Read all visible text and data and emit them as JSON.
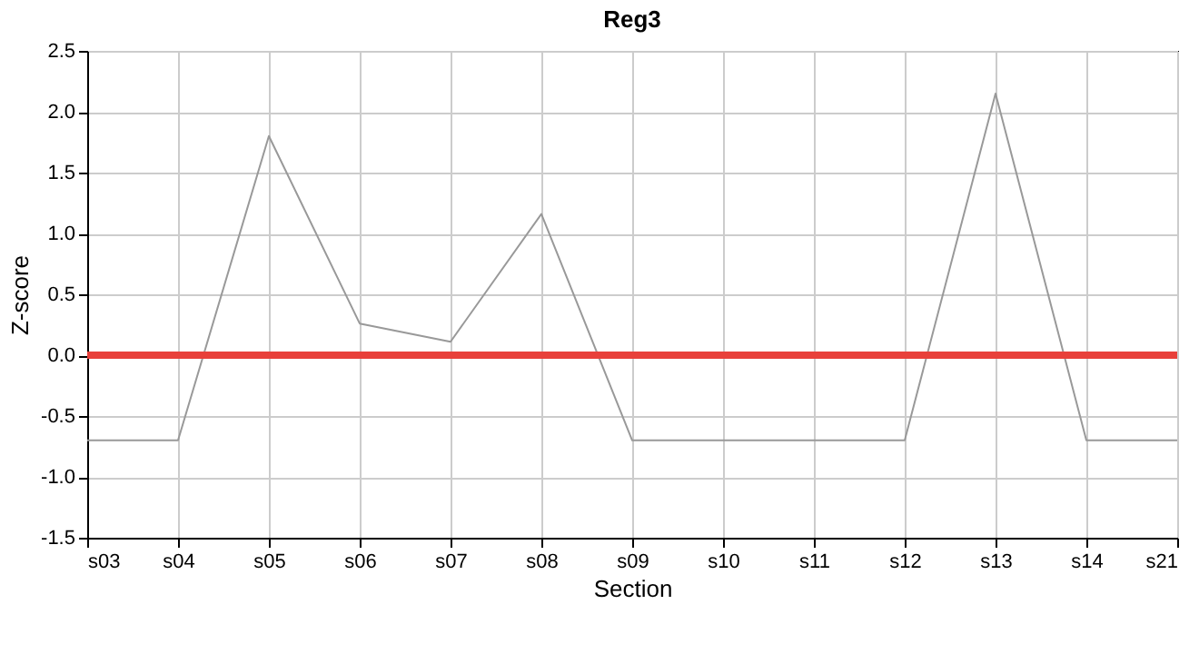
{
  "chart_data": {
    "type": "line",
    "title": "Reg3",
    "xlabel": "Section",
    "ylabel": "Z-score",
    "categories": [
      "s03",
      "s04",
      "s05",
      "s06",
      "s07",
      "s08",
      "s09",
      "s10",
      "s11",
      "s12",
      "s13",
      "s14",
      "s21"
    ],
    "series": [
      {
        "color": "#999999",
        "values": [
          -0.7,
          -0.7,
          1.8,
          0.26,
          0.11,
          1.16,
          -0.7,
          -0.7,
          -0.7,
          -0.7,
          2.15,
          -0.7,
          -0.7
        ]
      }
    ],
    "ylim": [
      -1.5,
      2.5
    ],
    "yticks": [
      {
        "value": -1.5,
        "label": "-1.5"
      },
      {
        "value": -1,
        "label": "-1.0"
      },
      {
        "value": -0.5,
        "label": "-0.5"
      },
      {
        "value": 0,
        "label": "0.0"
      },
      {
        "value": 0.5,
        "label": "0.5"
      },
      {
        "value": 1,
        "label": "1.0"
      },
      {
        "value": 1.5,
        "label": "1.5"
      },
      {
        "value": 2,
        "label": "2.0"
      },
      {
        "value": 2.5,
        "label": "2.5"
      }
    ],
    "ref_lines": [
      {
        "axis": "y",
        "value": 0,
        "color": "#e8403a"
      }
    ],
    "grid": true,
    "marker": "none",
    "line_style": "solid"
  }
}
